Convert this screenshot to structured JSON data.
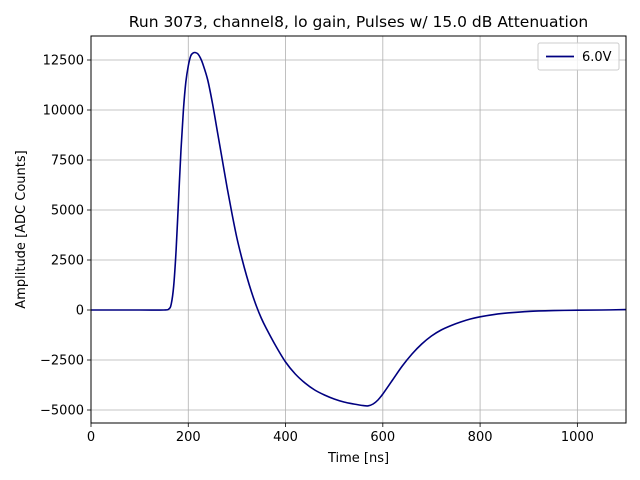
{
  "chart_data": {
    "type": "line",
    "title": "Run 3073, channel8, lo gain, Pulses w/ 15.0 dB Attenuation",
    "xlabel": "Time [ns]",
    "ylabel": "Amplitude [ADC Counts]",
    "xlim": [
      0,
      1100
    ],
    "ylim": [
      -5650,
      13700
    ],
    "xticks": [
      0,
      200,
      400,
      600,
      800,
      1000
    ],
    "yticks": [
      -5000,
      -2500,
      0,
      2500,
      5000,
      7500,
      10000,
      12500
    ],
    "ytick_labels": [
      "−5000",
      "−2500",
      "0",
      "2500",
      "5000",
      "7500",
      "10000",
      "12500"
    ],
    "grid": true,
    "legend_position": "top-right",
    "series": [
      {
        "name": "6.0V",
        "color": "#000080",
        "x": [
          0,
          100,
          150,
          160,
          165,
          170,
          175,
          180,
          185,
          190,
          195,
          200,
          205,
          210,
          215,
          220,
          225,
          230,
          240,
          250,
          260,
          270,
          280,
          290,
          300,
          310,
          320,
          330,
          340,
          350,
          360,
          380,
          400,
          420,
          440,
          460,
          480,
          500,
          520,
          540,
          560,
          570,
          580,
          590,
          600,
          620,
          640,
          660,
          680,
          700,
          720,
          740,
          760,
          780,
          800,
          830,
          860,
          900,
          950,
          1000,
          1050,
          1100
        ],
        "y": [
          0,
          0,
          0,
          50,
          300,
          1200,
          3000,
          5500,
          8000,
          10000,
          11400,
          12200,
          12700,
          12850,
          12870,
          12800,
          12600,
          12300,
          11500,
          10300,
          8900,
          7500,
          6100,
          4800,
          3600,
          2600,
          1700,
          900,
          200,
          -400,
          -900,
          -1800,
          -2600,
          -3200,
          -3650,
          -4000,
          -4250,
          -4450,
          -4600,
          -4700,
          -4780,
          -4790,
          -4700,
          -4500,
          -4200,
          -3500,
          -2800,
          -2200,
          -1700,
          -1300,
          -1000,
          -780,
          -600,
          -450,
          -340,
          -220,
          -140,
          -70,
          -30,
          -10,
          0,
          20
        ]
      }
    ]
  }
}
